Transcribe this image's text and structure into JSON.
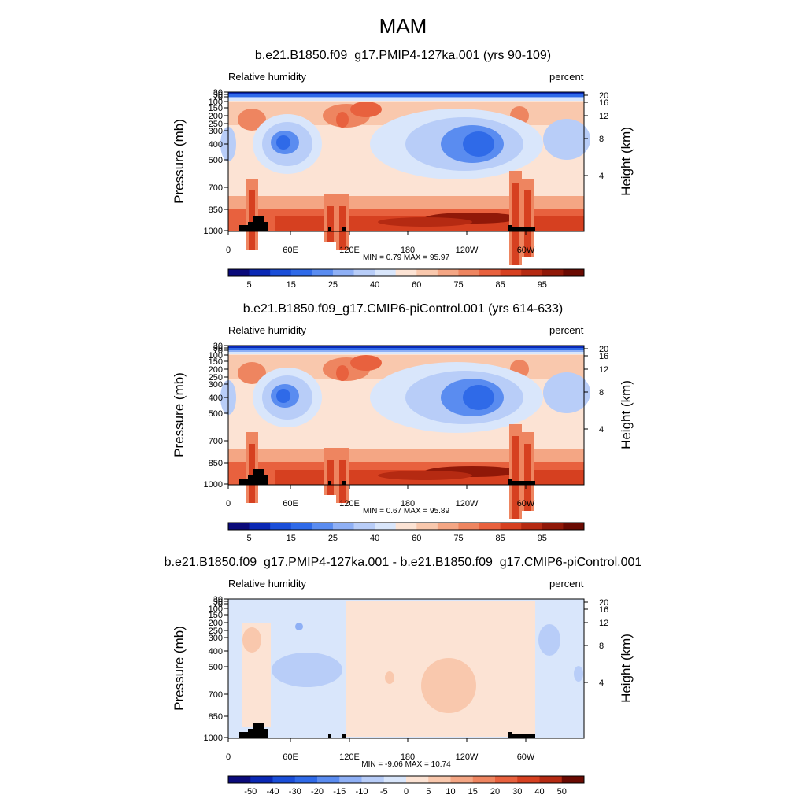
{
  "main_title": "MAM",
  "chart_data": [
    {
      "type": "heatmap",
      "title": "b.e21.B1850.f09_g17.PMIP4-127ka.001 (yrs 90-109)",
      "left_label": "Relative humidity",
      "right_label": "percent",
      "ylabel": "Pressure (mb)",
      "ylabel_right": "Height (km)",
      "pressure_ticks": [
        "30",
        "50",
        "70",
        "100",
        "150",
        "200",
        "250",
        "300",
        "400",
        "500",
        "700",
        "850",
        "1000"
      ],
      "height_ticks": [
        "20",
        "16",
        "12",
        "8",
        "4"
      ],
      "longitude_ticks": [
        "0",
        "60E",
        "120E",
        "180",
        "120W",
        "60W"
      ],
      "stats": {
        "min": "0.79",
        "max": "95.97"
      },
      "stats_text": "MIN =   0.79  MAX =  95.97",
      "colorbar_labels": [
        "5",
        "15",
        "25",
        "40",
        "60",
        "75",
        "85",
        "95"
      ],
      "colorbar_colors": [
        "#0a0a7a",
        "#0a28b4",
        "#1a4ed8",
        "#2f6ae8",
        "#5a8cf0",
        "#8fb0f5",
        "#b8cdf8",
        "#d9e6fb",
        "#fce3d4",
        "#f9c8ad",
        "#f4a684",
        "#ee8560",
        "#e8613e",
        "#d64020",
        "#b52a12",
        "#901808",
        "#6a0a02"
      ]
    },
    {
      "type": "heatmap",
      "title": "b.e21.B1850.f09_g17.CMIP6-piControl.001 (yrs 614-633)",
      "left_label": "Relative humidity",
      "right_label": "percent",
      "ylabel": "Pressure (mb)",
      "ylabel_right": "Height (km)",
      "pressure_ticks": [
        "30",
        "50",
        "70",
        "100",
        "150",
        "200",
        "250",
        "300",
        "400",
        "500",
        "700",
        "850",
        "1000"
      ],
      "height_ticks": [
        "20",
        "16",
        "12",
        "8",
        "4"
      ],
      "longitude_ticks": [
        "0",
        "60E",
        "120E",
        "180",
        "120W",
        "60W"
      ],
      "stats": {
        "min": "0.67",
        "max": "95.89"
      },
      "stats_text": "MIN =   0.67  MAX =  95.89",
      "colorbar_labels": [
        "5",
        "15",
        "25",
        "40",
        "60",
        "75",
        "85",
        "95"
      ],
      "colorbar_colors": [
        "#0a0a7a",
        "#0a28b4",
        "#1a4ed8",
        "#2f6ae8",
        "#5a8cf0",
        "#8fb0f5",
        "#b8cdf8",
        "#d9e6fb",
        "#fce3d4",
        "#f9c8ad",
        "#f4a684",
        "#ee8560",
        "#e8613e",
        "#d64020",
        "#b52a12",
        "#901808",
        "#6a0a02"
      ]
    },
    {
      "type": "heatmap",
      "title": "b.e21.B1850.f09_g17.PMIP4-127ka.001 - b.e21.B1850.f09_g17.CMIP6-piControl.001",
      "left_label": "Relative humidity",
      "right_label": "percent",
      "ylabel": "Pressure (mb)",
      "ylabel_right": "Height (km)",
      "pressure_ticks": [
        "30",
        "50",
        "70",
        "100",
        "150",
        "200",
        "250",
        "300",
        "400",
        "500",
        "700",
        "850",
        "1000"
      ],
      "height_ticks": [
        "20",
        "16",
        "12",
        "8",
        "4"
      ],
      "longitude_ticks": [
        "0",
        "60E",
        "120E",
        "180",
        "120W",
        "60W"
      ],
      "stats": {
        "min": "-9.06",
        "max": "10.74"
      },
      "stats_text": "MIN =  -9.06  MAX =  10.74",
      "colorbar_labels": [
        "-50",
        "-40",
        "-30",
        "-20",
        "-15",
        "-10",
        "-5",
        "0",
        "5",
        "10",
        "15",
        "20",
        "30",
        "40",
        "50"
      ],
      "colorbar_colors": [
        "#0a0a7a",
        "#0a28b4",
        "#1a4ed8",
        "#2f6ae8",
        "#5a8cf0",
        "#8fb0f5",
        "#b8cdf8",
        "#d9e6fb",
        "#fce3d4",
        "#f9c8ad",
        "#f4a684",
        "#ee8560",
        "#e8613e",
        "#d64020",
        "#b52a12",
        "#6a0a02"
      ]
    }
  ]
}
